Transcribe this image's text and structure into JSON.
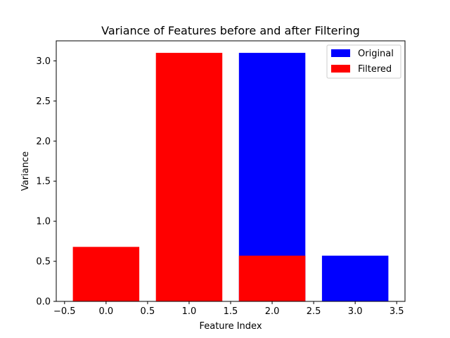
{
  "chart_data": {
    "type": "bar",
    "title": "Variance of Features before and after Filtering",
    "xlabel": "Feature Index",
    "ylabel": "Variance",
    "xlim": [
      -0.6,
      3.6
    ],
    "ylim": [
      0,
      3.25
    ],
    "xticks": [
      -0.5,
      0.0,
      0.5,
      1.0,
      1.5,
      2.0,
      2.5,
      3.0,
      3.5
    ],
    "xtick_labels": [
      "−0.5",
      "0.0",
      "0.5",
      "1.0",
      "1.5",
      "2.0",
      "2.5",
      "3.0",
      "3.5"
    ],
    "yticks": [
      0.0,
      0.5,
      1.0,
      1.5,
      2.0,
      2.5,
      3.0
    ],
    "ytick_labels": [
      "0.0",
      "0.5",
      "1.0",
      "1.5",
      "2.0",
      "2.5",
      "3.0"
    ],
    "grid": false,
    "legend_position": "top-right",
    "series": [
      {
        "name": "Original",
        "color": "#0000ff",
        "x": [
          2,
          3
        ],
        "values": [
          3.1,
          0.57
        ]
      },
      {
        "name": "Filtered",
        "color": "#ff0000",
        "x": [
          0,
          1,
          2
        ],
        "values": [
          0.68,
          3.1,
          0.57
        ]
      }
    ]
  }
}
